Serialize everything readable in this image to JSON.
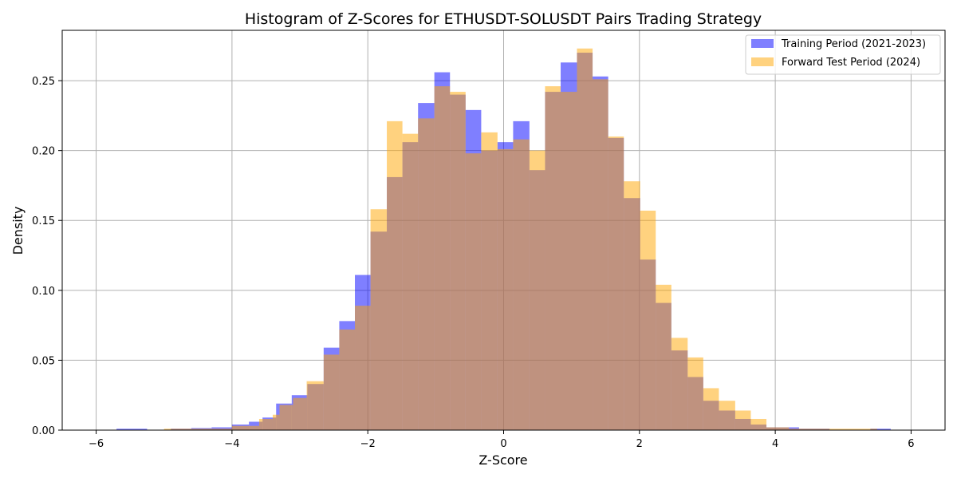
{
  "chart_data": {
    "type": "histogram",
    "title": "Histogram of Z-Scores for ETHUSDT-SOLUSDT Pairs Trading Strategy",
    "xlabel": "Z-Score",
    "ylabel": "Density",
    "xlim": [
      -6.5,
      6.5
    ],
    "ylim": [
      0,
      0.286
    ],
    "x_ticks": [
      -6,
      -4,
      -2,
      0,
      2,
      4,
      6
    ],
    "x_tick_labels": [
      "−6",
      "−4",
      "−2",
      "0",
      "2",
      "4",
      "6"
    ],
    "y_ticks": [
      0,
      0.05,
      0.1,
      0.15,
      0.2,
      0.25
    ],
    "y_tick_labels": [
      "0.00",
      "0.05",
      "0.10",
      "0.15",
      "0.20",
      "0.25"
    ],
    "grid": true,
    "legend_position": "top-right",
    "series": [
      {
        "name": "Training Period (2021-2023)",
        "color": "#0000ff",
        "alpha": 0.5,
        "bins": [
          [
            -5.7,
            -5.25,
            0.001
          ],
          [
            -4.9,
            -4.6,
            0.001
          ],
          [
            -4.6,
            -4.3,
            0.0015
          ],
          [
            -4.3,
            -4.0,
            0.002
          ],
          [
            -4.0,
            -3.75,
            0.004
          ],
          [
            -3.75,
            -3.55,
            0.006
          ],
          [
            -3.55,
            -3.35,
            0.009
          ],
          [
            -3.35,
            -3.12,
            0.019
          ],
          [
            -3.12,
            -2.89,
            0.025
          ],
          [
            -2.89,
            -2.65,
            0.033
          ],
          [
            -2.65,
            -2.42,
            0.059
          ],
          [
            -2.42,
            -2.19,
            0.078
          ],
          [
            -2.19,
            -1.96,
            0.111
          ],
          [
            -1.96,
            -1.72,
            0.142
          ],
          [
            -1.72,
            -1.49,
            0.181
          ],
          [
            -1.49,
            -1.26,
            0.206
          ],
          [
            -1.26,
            -1.02,
            0.234
          ],
          [
            -1.02,
            -0.79,
            0.256
          ],
          [
            -0.79,
            -0.56,
            0.24
          ],
          [
            -0.56,
            -0.33,
            0.229
          ],
          [
            -0.33,
            -0.09,
            0.2
          ],
          [
            -0.09,
            0.14,
            0.206
          ],
          [
            0.14,
            0.38,
            0.221
          ],
          [
            0.38,
            0.61,
            0.186
          ],
          [
            0.61,
            0.84,
            0.242
          ],
          [
            0.84,
            1.08,
            0.263
          ],
          [
            1.08,
            1.31,
            0.27
          ],
          [
            1.31,
            1.54,
            0.253
          ],
          [
            1.54,
            1.77,
            0.209
          ],
          [
            1.77,
            2.01,
            0.166
          ],
          [
            2.01,
            2.24,
            0.122
          ],
          [
            2.24,
            2.47,
            0.091
          ],
          [
            2.47,
            2.71,
            0.057
          ],
          [
            2.71,
            2.94,
            0.038
          ],
          [
            2.94,
            3.17,
            0.021
          ],
          [
            3.17,
            3.41,
            0.014
          ],
          [
            3.41,
            3.64,
            0.008
          ],
          [
            3.64,
            3.87,
            0.004
          ],
          [
            3.87,
            4.35,
            0.002
          ],
          [
            4.35,
            4.8,
            0.001
          ],
          [
            5.4,
            5.7,
            0.001
          ]
        ]
      },
      {
        "name": "Forward Test Period (2024)",
        "color": "#ffa500",
        "alpha": 0.5,
        "bins": [
          [
            -5.0,
            -4.0,
            0.001
          ],
          [
            -4.0,
            -3.6,
            0.003
          ],
          [
            -3.6,
            -3.4,
            0.008
          ],
          [
            -3.4,
            -3.3,
            0.011
          ],
          [
            -3.3,
            -3.1,
            0.018
          ],
          [
            -3.1,
            -2.9,
            0.023
          ],
          [
            -2.9,
            -2.65,
            0.035
          ],
          [
            -2.65,
            -2.42,
            0.054
          ],
          [
            -2.42,
            -2.19,
            0.072
          ],
          [
            -2.19,
            -1.96,
            0.089
          ],
          [
            -1.96,
            -1.72,
            0.158
          ],
          [
            -1.72,
            -1.49,
            0.221
          ],
          [
            -1.49,
            -1.26,
            0.212
          ],
          [
            -1.26,
            -1.02,
            0.223
          ],
          [
            -1.02,
            -0.79,
            0.246
          ],
          [
            -0.79,
            -0.56,
            0.242
          ],
          [
            -0.56,
            -0.33,
            0.198
          ],
          [
            -0.33,
            -0.09,
            0.213
          ],
          [
            -0.09,
            0.14,
            0.201
          ],
          [
            0.14,
            0.38,
            0.208
          ],
          [
            0.38,
            0.61,
            0.2
          ],
          [
            0.61,
            0.84,
            0.246
          ],
          [
            0.84,
            1.08,
            0.242
          ],
          [
            1.08,
            1.31,
            0.273
          ],
          [
            1.31,
            1.54,
            0.251
          ],
          [
            1.54,
            1.77,
            0.21
          ],
          [
            1.77,
            2.01,
            0.178
          ],
          [
            2.01,
            2.24,
            0.157
          ],
          [
            2.24,
            2.47,
            0.104
          ],
          [
            2.47,
            2.71,
            0.066
          ],
          [
            2.71,
            2.94,
            0.052
          ],
          [
            2.94,
            3.17,
            0.03
          ],
          [
            3.17,
            3.41,
            0.021
          ],
          [
            3.41,
            3.64,
            0.014
          ],
          [
            3.64,
            3.87,
            0.008
          ],
          [
            3.87,
            4.2,
            0.002
          ],
          [
            4.2,
            5.5,
            0.001
          ]
        ]
      }
    ]
  }
}
